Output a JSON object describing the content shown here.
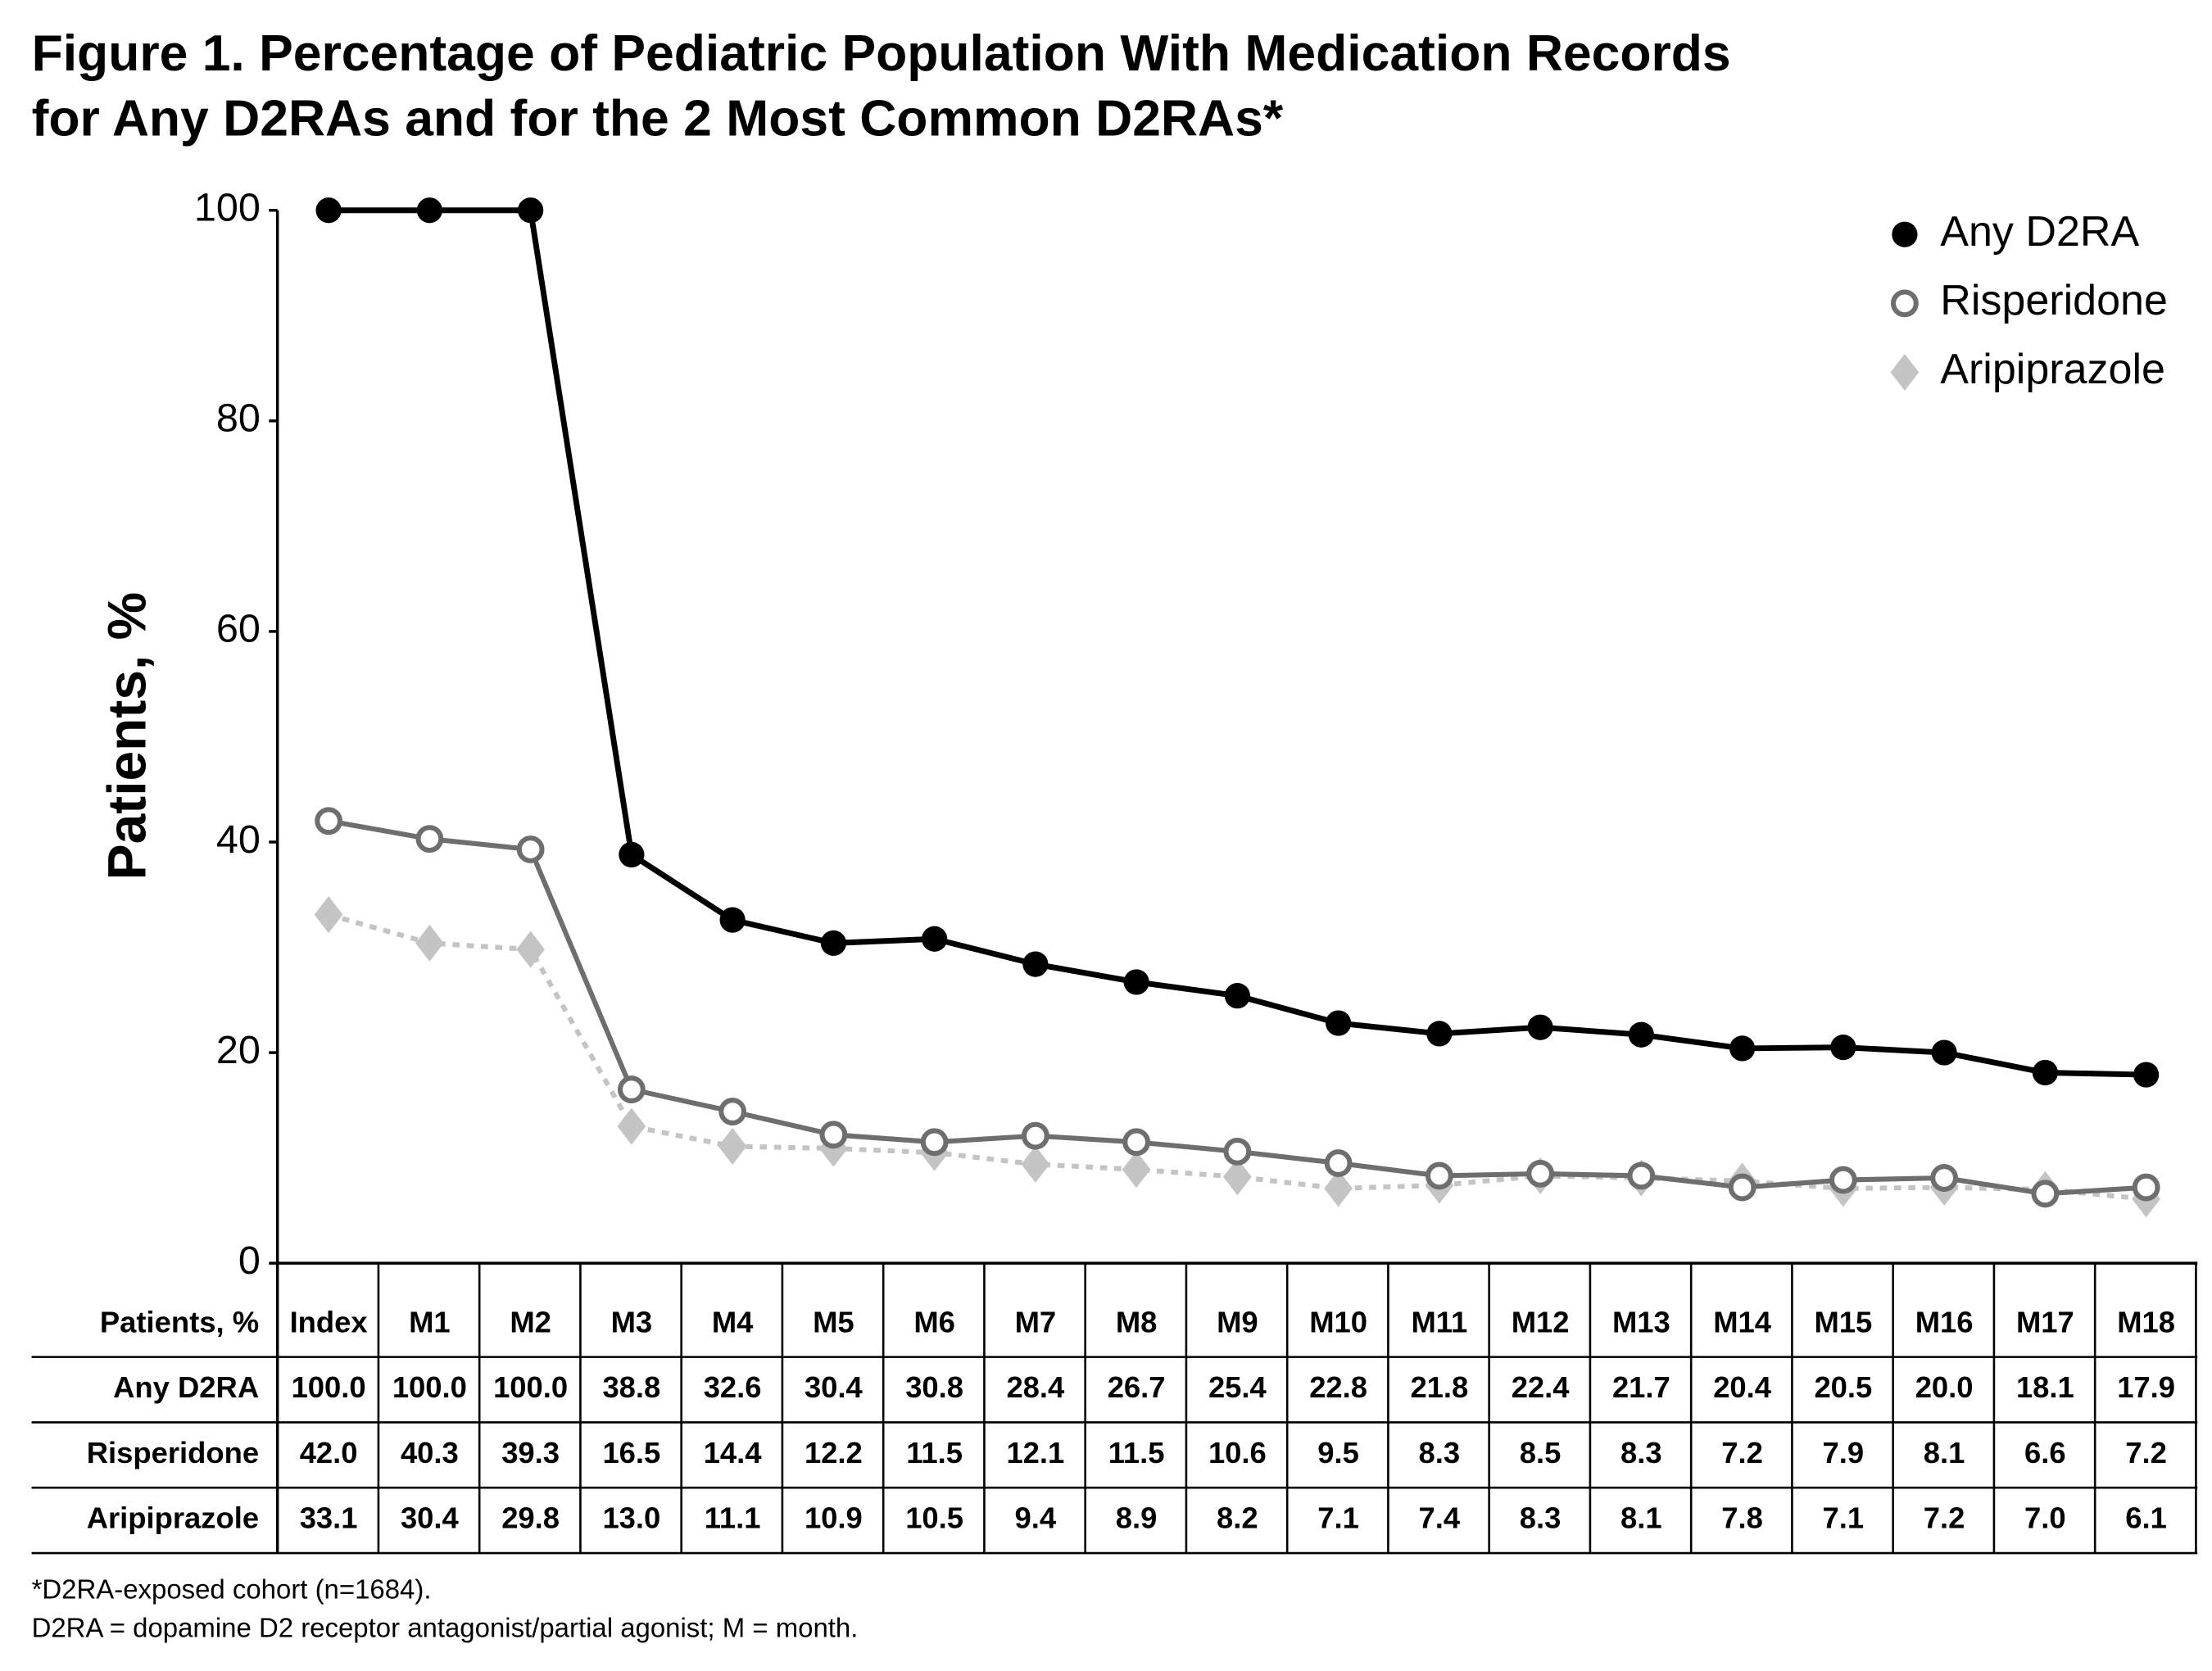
{
  "chart_data": {
    "type": "line",
    "title": [
      "Figure 1. Percentage of Pediatric Population With Medication Records",
      "for Any D2RAs and for the 2 Most Common D2RAs*"
    ],
    "y_label": "Patients, %",
    "categories": [
      "Index",
      "M1",
      "M2",
      "M3",
      "M4",
      "M5",
      "M6",
      "M7",
      "M8",
      "M9",
      "M10",
      "M11",
      "M12",
      "M13",
      "M14",
      "M15",
      "M16",
      "M17",
      "M18"
    ],
    "series": [
      {
        "name": "Any D2RA",
        "color": "#000000",
        "marker": "circle",
        "hollow": false,
        "dashed": false,
        "values": [
          100.0,
          100.0,
          100.0,
          38.8,
          32.6,
          30.4,
          30.8,
          28.4,
          26.7,
          25.4,
          22.8,
          21.8,
          22.4,
          21.7,
          20.4,
          20.5,
          20.0,
          18.1,
          17.9
        ],
        "value_labels": [
          "100.0",
          "100.0",
          "100.0",
          "38.8",
          "32.6",
          "30.4",
          "30.8",
          "28.4",
          "26.7",
          "25.4",
          "22.8",
          "21.8",
          "22.4",
          "21.7",
          "20.4",
          "20.5",
          "20.0",
          "18.1",
          "17.9"
        ]
      },
      {
        "name": "Risperidone",
        "color": "#6e6e6e",
        "marker": "circle",
        "hollow": true,
        "dashed": false,
        "values": [
          42.0,
          40.3,
          39.3,
          16.5,
          14.4,
          12.2,
          11.5,
          12.1,
          11.5,
          10.6,
          9.5,
          8.3,
          8.5,
          8.3,
          7.2,
          7.9,
          8.1,
          6.6,
          7.2
        ],
        "value_labels": [
          "42.0",
          "40.3",
          "39.3",
          "16.5",
          "14.4",
          "12.2",
          "11.5",
          "12.1",
          "11.5",
          "10.6",
          "9.5",
          "8.3",
          "8.5",
          "8.3",
          "7.2",
          "7.9",
          "8.1",
          "6.6",
          "7.2"
        ]
      },
      {
        "name": "Aripiprazole",
        "color": "#c4c4c4",
        "marker": "diamond",
        "hollow": false,
        "dashed": true,
        "values": [
          33.1,
          30.4,
          29.8,
          13.0,
          11.1,
          10.9,
          10.5,
          9.4,
          8.9,
          8.2,
          7.1,
          7.4,
          8.3,
          8.1,
          7.8,
          7.1,
          7.2,
          7.0,
          6.1
        ],
        "value_labels": [
          "33.1",
          "30.4",
          "29.8",
          "13.0",
          "11.1",
          "10.9",
          "10.5",
          "9.4",
          "8.9",
          "8.2",
          "7.1",
          "7.4",
          "8.3",
          "8.1",
          "7.8",
          "7.1",
          "7.2",
          "7.0",
          "6.1"
        ]
      }
    ],
    "ylim": [
      0,
      100
    ],
    "yticks": [
      0,
      20,
      40,
      60,
      80,
      100
    ],
    "legend": "upper right",
    "table_header": "Patients, %",
    "notes": [
      "*D2RA-exposed cohort (n=1684).",
      "D2RA = dopamine D2 receptor antagonist/partial agonist; M = month."
    ]
  }
}
